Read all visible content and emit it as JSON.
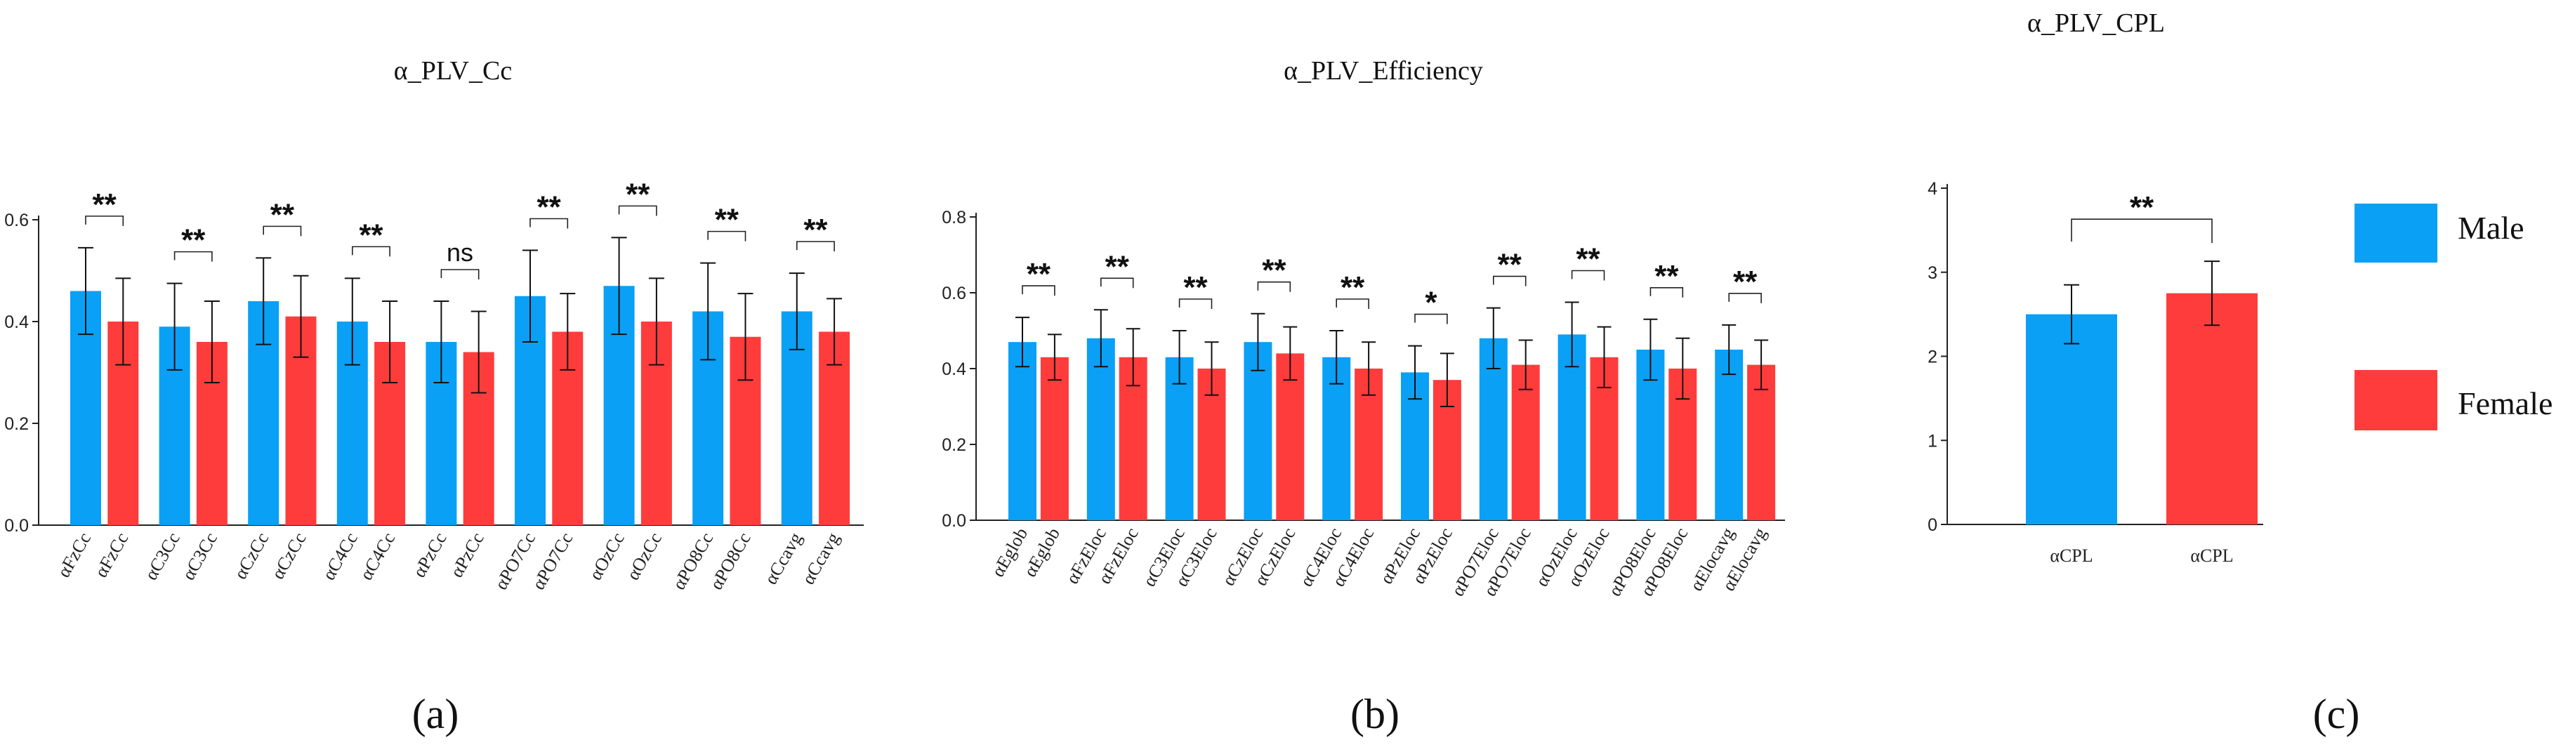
{
  "colors": {
    "male": "#0aa0f5",
    "female": "#ff3c3c"
  },
  "legend": {
    "male_label": "Male",
    "female_label": "Female"
  },
  "chart_data": [
    {
      "type": "bar",
      "panel_label": "(a)",
      "title": "α_PLV_Cc",
      "ylim": [
        0,
        0.6
      ],
      "yticks": [
        "0.0",
        "0.2",
        "0.4",
        "0.6"
      ],
      "categories": [
        "αFzCc",
        "αFzCc",
        "αC3Cc",
        "αC3Cc",
        "αCzCc",
        "αCzCc",
        "αC4Cc",
        "αC4Cc",
        "αPzCc",
        "αPzCc",
        "αPO7Cc",
        "αPO7Cc",
        "αOzCc",
        "αOzCc",
        "αPO8Cc",
        "αPO8Cc",
        "αCcavg",
        "αCcavg"
      ],
      "groups": [
        "Male",
        "Female",
        "Male",
        "Female",
        "Male",
        "Female",
        "Male",
        "Female",
        "Male",
        "Female",
        "Male",
        "Female",
        "Male",
        "Female",
        "Male",
        "Female",
        "Male",
        "Female"
      ],
      "values": [
        0.46,
        0.4,
        0.39,
        0.36,
        0.44,
        0.41,
        0.4,
        0.36,
        0.36,
        0.34,
        0.45,
        0.38,
        0.47,
        0.4,
        0.42,
        0.37,
        0.42,
        0.38
      ],
      "errors": [
        0.085,
        0.085,
        0.085,
        0.08,
        0.085,
        0.08,
        0.085,
        0.08,
        0.08,
        0.08,
        0.09,
        0.075,
        0.095,
        0.085,
        0.095,
        0.085,
        0.075,
        0.065
      ],
      "significance": [
        "**",
        "**",
        "**",
        "**",
        "ns",
        "**",
        "**",
        "**",
        "**"
      ]
    },
    {
      "type": "bar",
      "panel_label": "(b)",
      "title": "α_PLV_Efficiency",
      "ylim": [
        0,
        0.8
      ],
      "yticks": [
        "0.0",
        "0.2",
        "0.4",
        "0.6",
        "0.8"
      ],
      "categories": [
        "αEglob",
        "αEglob",
        "αFzEloc",
        "αFzEloc",
        "αC3Eloc",
        "αC3Eloc",
        "αCzEloc",
        "αCzEloc",
        "αC4Eloc",
        "αC4Eloc",
        "αPzEloc",
        "αPzEloc",
        "αPO7Eloc",
        "αPO7Eloc",
        "αOzEloc",
        "αOzEloc",
        "αPO8Eloc",
        "αPO8Eloc",
        "αElocavg",
        "αElocavg"
      ],
      "groups": [
        "Male",
        "Female",
        "Male",
        "Female",
        "Male",
        "Female",
        "Male",
        "Female",
        "Male",
        "Female",
        "Male",
        "Female",
        "Male",
        "Female",
        "Male",
        "Female",
        "Male",
        "Female",
        "Male",
        "Female"
      ],
      "values": [
        0.47,
        0.43,
        0.48,
        0.43,
        0.43,
        0.4,
        0.47,
        0.44,
        0.43,
        0.4,
        0.39,
        0.37,
        0.48,
        0.41,
        0.49,
        0.43,
        0.45,
        0.4,
        0.45,
        0.41
      ],
      "errors": [
        0.065,
        0.06,
        0.075,
        0.075,
        0.07,
        0.07,
        0.075,
        0.07,
        0.07,
        0.07,
        0.07,
        0.07,
        0.08,
        0.065,
        0.085,
        0.08,
        0.08,
        0.08,
        0.065,
        0.065
      ],
      "significance": [
        "**",
        "**",
        "**",
        "**",
        "**",
        "*",
        "**",
        "**",
        "**",
        "**"
      ]
    },
    {
      "type": "bar",
      "panel_label": "(c)",
      "title": "α_PLV_CPL",
      "ylim": [
        0,
        4
      ],
      "yticks": [
        "0",
        "1",
        "2",
        "3",
        "4"
      ],
      "categories": [
        "αCPL",
        "αCPL"
      ],
      "groups": [
        "Male",
        "Female"
      ],
      "values": [
        2.5,
        2.75
      ],
      "errors": [
        0.35,
        0.38
      ],
      "significance": [
        "**"
      ]
    }
  ]
}
